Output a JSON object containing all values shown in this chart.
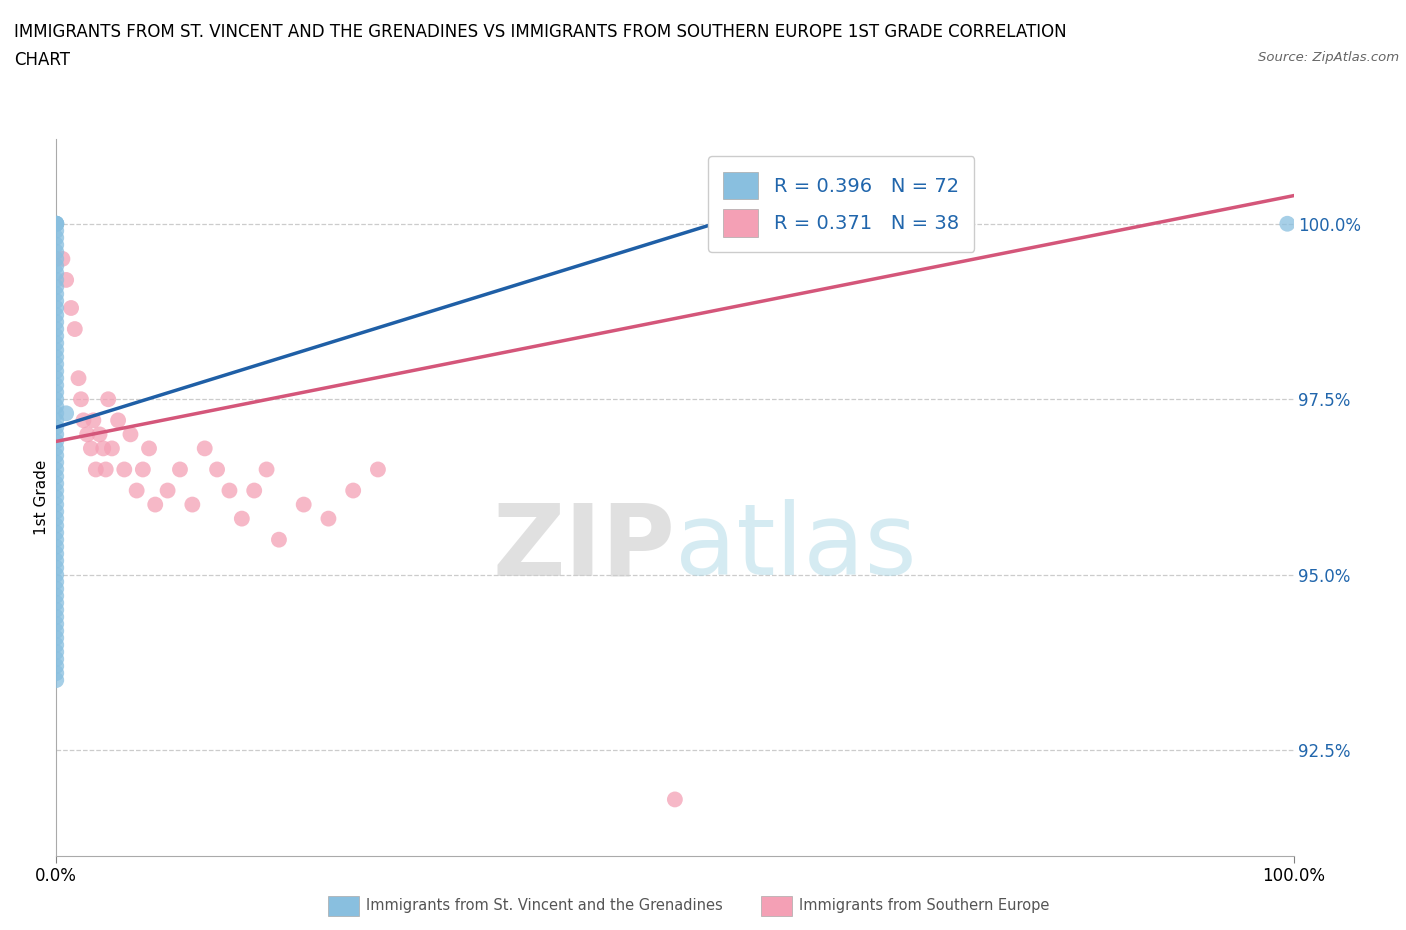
{
  "title_line1": "IMMIGRANTS FROM ST. VINCENT AND THE GRENADINES VS IMMIGRANTS FROM SOUTHERN EUROPE 1ST GRADE CORRELATION",
  "title_line2": "CHART",
  "source_text": "Source: ZipAtlas.com",
  "ylabel": "1st Grade",
  "legend_label_blue": "Immigrants from St. Vincent and the Grenadines",
  "legend_label_pink": "Immigrants from Southern Europe",
  "R_blue": 0.396,
  "N_blue": 72,
  "R_pink": 0.371,
  "N_pink": 38,
  "blue_scatter_color": "#89bfdf",
  "pink_scatter_color": "#f4a0b5",
  "blue_line_color": "#1f5fa6",
  "pink_line_color": "#d4567a",
  "ytick_color": "#2166ac",
  "ytick_values": [
    92.5,
    95.0,
    97.5,
    100.0
  ],
  "xlim": [
    0,
    100
  ],
  "ylim": [
    91.0,
    101.2
  ],
  "blue_line_x": [
    0.0,
    55.0
  ],
  "blue_line_y": [
    97.1,
    100.1
  ],
  "pink_line_x": [
    0.0,
    100.0
  ],
  "pink_line_y": [
    96.9,
    100.4
  ],
  "blue_scatter_x": [
    0.0,
    0.0,
    0.0,
    0.0,
    0.0,
    0.0,
    0.0,
    0.0,
    0.0,
    0.0,
    0.0,
    0.0,
    0.0,
    0.0,
    0.0,
    0.0,
    0.0,
    0.0,
    0.0,
    0.0,
    0.0,
    0.0,
    0.0,
    0.0,
    0.0,
    0.0,
    0.0,
    0.0,
    0.0,
    0.0,
    0.0,
    0.0,
    0.0,
    0.0,
    0.0,
    0.0,
    0.0,
    0.0,
    0.0,
    0.0,
    0.0,
    0.0,
    0.0,
    0.0,
    0.0,
    0.0,
    0.0,
    0.0,
    0.0,
    0.0,
    0.0,
    0.0,
    0.0,
    0.0,
    0.0,
    0.0,
    0.0,
    0.0,
    0.0,
    0.0,
    0.0,
    0.0,
    0.0,
    0.0,
    0.0,
    0.0,
    0.0,
    0.0,
    0.0,
    0.0,
    0.8,
    99.5
  ],
  "blue_scatter_y": [
    100.0,
    100.0,
    100.0,
    100.0,
    100.0,
    99.9,
    99.8,
    99.7,
    99.6,
    99.5,
    99.4,
    99.3,
    99.2,
    99.1,
    99.0,
    98.9,
    98.8,
    98.7,
    98.6,
    98.5,
    98.4,
    98.3,
    98.2,
    98.1,
    98.0,
    97.9,
    97.8,
    97.7,
    97.6,
    97.5,
    97.4,
    97.3,
    97.2,
    97.1,
    97.0,
    96.9,
    96.8,
    96.7,
    96.6,
    96.5,
    96.4,
    96.3,
    96.2,
    96.1,
    96.0,
    95.9,
    95.8,
    95.7,
    95.6,
    95.5,
    95.4,
    95.3,
    95.2,
    95.1,
    95.0,
    94.9,
    94.8,
    94.7,
    94.6,
    94.5,
    94.4,
    94.3,
    94.2,
    94.1,
    94.0,
    93.9,
    93.8,
    93.7,
    93.6,
    93.5,
    97.3,
    100.0
  ],
  "pink_scatter_x": [
    0.5,
    0.8,
    1.2,
    1.5,
    1.8,
    2.0,
    2.2,
    2.5,
    2.8,
    3.0,
    3.2,
    3.5,
    3.8,
    4.0,
    4.2,
    4.5,
    5.0,
    5.5,
    6.0,
    6.5,
    7.0,
    7.5,
    8.0,
    9.0,
    10.0,
    11.0,
    12.0,
    13.0,
    14.0,
    15.0,
    16.0,
    17.0,
    18.0,
    20.0,
    22.0,
    24.0,
    26.0,
    50.0
  ],
  "pink_scatter_y": [
    99.5,
    99.2,
    98.8,
    98.5,
    97.8,
    97.5,
    97.2,
    97.0,
    96.8,
    97.2,
    96.5,
    97.0,
    96.8,
    96.5,
    97.5,
    96.8,
    97.2,
    96.5,
    97.0,
    96.2,
    96.5,
    96.8,
    96.0,
    96.2,
    96.5,
    96.0,
    96.8,
    96.5,
    96.2,
    95.8,
    96.2,
    96.5,
    95.5,
    96.0,
    95.8,
    96.2,
    96.5,
    91.8
  ]
}
